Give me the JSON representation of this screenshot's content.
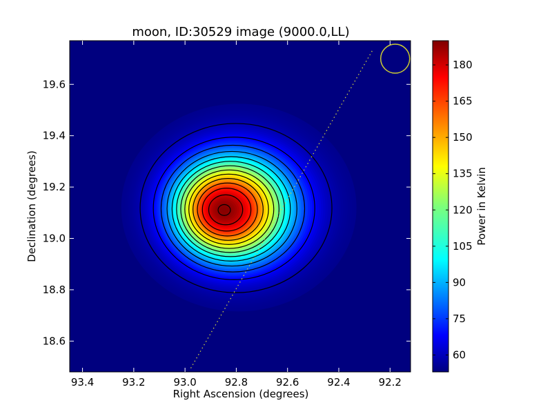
{
  "chart_data": {
    "type": "heatmap",
    "title": "moon, ID:30529 image (9000.0,LL)",
    "xlabel": "Right Ascension (degrees)",
    "ylabel": "Declination (degrees)",
    "xlim": [
      93.45,
      92.12
    ],
    "ylim": [
      18.48,
      19.77
    ],
    "x_ticks": [
      "93.4",
      "93.2",
      "93.0",
      "92.8",
      "92.6",
      "92.4",
      "92.2"
    ],
    "x_tick_values": [
      93.4,
      93.2,
      93.0,
      92.8,
      92.6,
      92.4,
      92.2
    ],
    "y_ticks": [
      "18.6",
      "18.8",
      "19.0",
      "19.2",
      "19.4",
      "19.6"
    ],
    "y_tick_values": [
      18.6,
      18.8,
      19.0,
      19.2,
      19.4,
      19.6
    ],
    "colorbar": {
      "label": "Power in Kelvin",
      "range": [
        53,
        190
      ],
      "ticks": [
        "60",
        "75",
        "90",
        "105",
        "120",
        "135",
        "150",
        "165",
        "180"
      ],
      "tick_values": [
        60,
        75,
        90,
        105,
        120,
        135,
        150,
        165,
        180
      ],
      "colormap": "jet"
    },
    "source": {
      "center_ra": 92.79,
      "center_dec": 19.12,
      "peak_ra": 92.85,
      "peak_dec": 19.11,
      "peak_kelvin": 189,
      "background_kelvin": 54
    },
    "contour_levels": [
      60,
      70,
      80,
      90,
      100,
      110,
      120,
      130,
      140,
      150,
      160,
      170,
      180,
      188
    ],
    "scan_line": {
      "ra": [
        92.27,
        92.98
      ],
      "dec": [
        19.73,
        18.49
      ],
      "color": "#cccc44",
      "style": "dotted"
    },
    "beam_circle": {
      "ra": 92.18,
      "dec": 19.7,
      "color": "#cccc33"
    },
    "grid": false,
    "colors": {
      "background_low": "#00007f",
      "contour": "#000000"
    }
  }
}
